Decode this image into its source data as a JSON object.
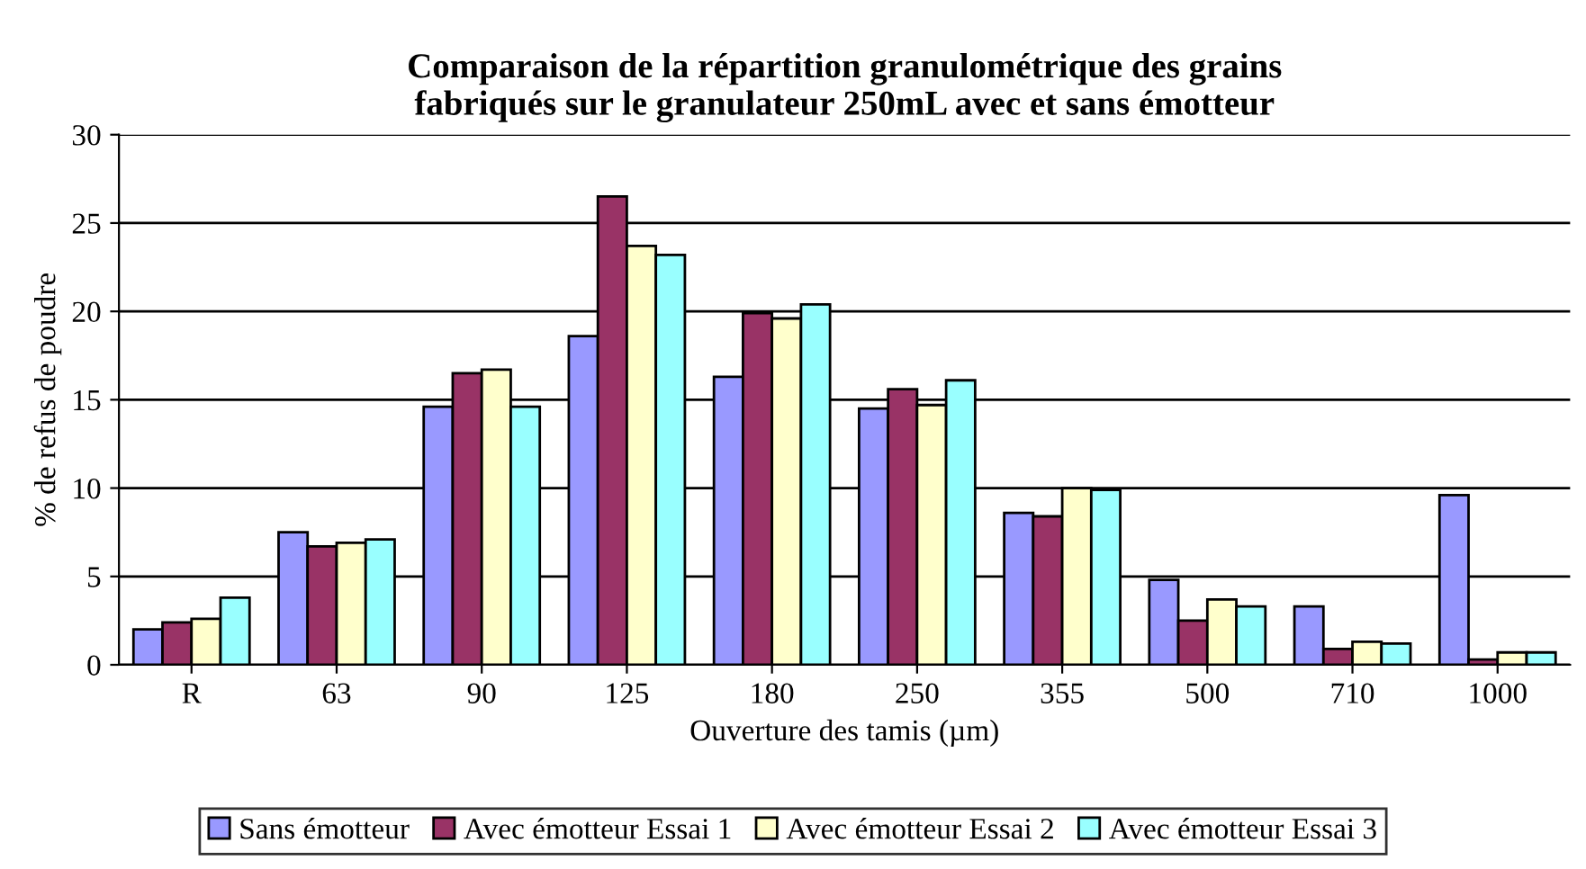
{
  "chart_data": {
    "type": "bar",
    "title": "Comparaison de la répartition granulométrique des grains\nfabriqués sur le granulateur 250mL avec et sans émotteur",
    "xlabel": "Ouverture des tamis (µm)",
    "ylabel": "% de refus de poudre",
    "categories": [
      "R",
      "63",
      "90",
      "125",
      "180",
      "250",
      "355",
      "500",
      "710",
      "1000"
    ],
    "series": [
      {
        "name": "Sans émotteur",
        "color": "#9999ff",
        "values": [
          2.0,
          7.5,
          14.6,
          18.6,
          16.3,
          14.5,
          8.6,
          4.8,
          3.3,
          9.6
        ]
      },
      {
        "name": "Avec émotteur Essai 1",
        "color": "#993366",
        "values": [
          2.4,
          6.7,
          16.5,
          26.5,
          19.9,
          15.6,
          8.4,
          2.5,
          0.9,
          0.3
        ]
      },
      {
        "name": "Avec émotteur Essai 2",
        "color": "#ffffcc",
        "values": [
          2.6,
          6.9,
          16.7,
          23.7,
          19.6,
          14.7,
          10.0,
          3.7,
          1.3,
          0.7
        ]
      },
      {
        "name": "Avec émotteur Essai 3",
        "color": "#99ffff",
        "values": [
          3.8,
          7.1,
          14.6,
          23.2,
          20.4,
          16.1,
          9.9,
          3.3,
          1.2,
          0.7
        ]
      }
    ],
    "ylim": [
      0,
      30
    ],
    "yticks": [
      0,
      5,
      10,
      15,
      20,
      25,
      30
    ],
    "grid": "y",
    "legend": "bottom"
  }
}
